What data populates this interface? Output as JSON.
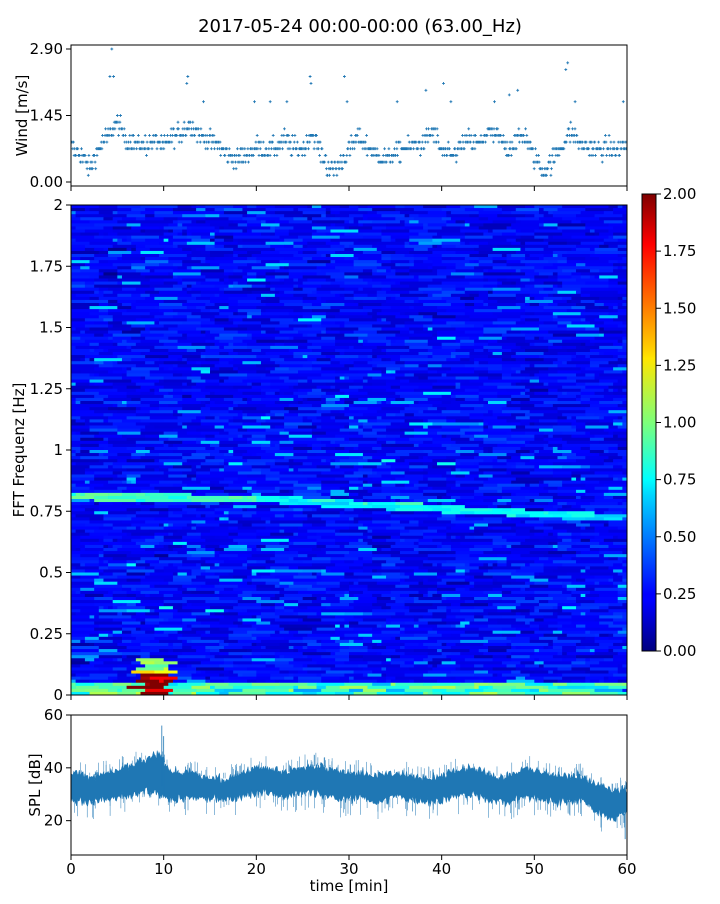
{
  "figure": {
    "title": "2017-05-24 00:00-00:00 (63.00_Hz)"
  },
  "chart_data": [
    {
      "type": "scatter",
      "panel": "wind",
      "ylabel": "Wind [m/s]",
      "xlim": [
        0,
        60
      ],
      "ylim": [
        0,
        2.9
      ],
      "yticks": [
        0.0,
        1.45,
        2.9
      ],
      "ytick_labels": [
        "0.00",
        "1.45",
        "2.90"
      ],
      "color": "#1f77b4",
      "marker": "+",
      "x_unit": "min",
      "trend": [
        [
          0,
          0.75
        ],
        [
          1,
          0.6
        ],
        [
          2,
          0.3
        ],
        [
          3,
          0.7
        ],
        [
          4,
          1.0
        ],
        [
          5,
          1.3
        ],
        [
          6,
          0.9
        ],
        [
          7,
          0.85
        ],
        [
          8,
          0.8
        ],
        [
          9,
          0.9
        ],
        [
          10,
          0.75
        ],
        [
          11,
          1.0
        ],
        [
          12,
          1.1
        ],
        [
          13,
          1.25
        ],
        [
          14,
          1.0
        ],
        [
          15,
          0.9
        ],
        [
          16,
          0.8
        ],
        [
          17,
          0.55
        ],
        [
          18,
          0.5
        ],
        [
          19,
          0.6
        ],
        [
          20,
          0.8
        ],
        [
          21,
          0.7
        ],
        [
          22,
          0.75
        ],
        [
          23,
          0.9
        ],
        [
          24,
          0.75
        ],
        [
          25,
          0.7
        ],
        [
          26,
          1.05
        ],
        [
          27,
          0.6
        ],
        [
          28,
          0.25
        ],
        [
          29,
          0.35
        ],
        [
          30,
          0.7
        ],
        [
          31,
          1.0
        ],
        [
          32,
          0.75
        ],
        [
          33,
          0.6
        ],
        [
          34,
          0.5
        ],
        [
          35,
          0.65
        ],
        [
          36,
          0.75
        ],
        [
          37,
          0.8
        ],
        [
          38,
          0.85
        ],
        [
          39,
          1.1
        ],
        [
          40,
          0.7
        ],
        [
          41,
          0.55
        ],
        [
          42,
          0.75
        ],
        [
          43,
          0.9
        ],
        [
          44,
          0.8
        ],
        [
          45,
          1.1
        ],
        [
          46,
          1.0
        ],
        [
          47,
          0.75
        ],
        [
          48,
          0.9
        ],
        [
          49,
          1.0
        ],
        [
          50,
          0.55
        ],
        [
          51,
          0.2
        ],
        [
          52,
          0.5
        ],
        [
          53,
          0.8
        ],
        [
          54,
          1.1
        ],
        [
          55,
          0.8
        ],
        [
          56,
          0.75
        ],
        [
          57,
          0.7
        ],
        [
          58,
          0.75
        ],
        [
          59,
          0.7
        ],
        [
          60,
          0.8
        ]
      ],
      "peaks": [
        [
          4.4,
          2.9
        ],
        [
          4.2,
          2.3
        ],
        [
          4.6,
          2.3
        ],
        [
          12.5,
          2.15
        ],
        [
          12.6,
          2.3
        ],
        [
          14.3,
          1.75
        ],
        [
          19.8,
          1.75
        ],
        [
          21.5,
          1.75
        ],
        [
          23.3,
          1.75
        ],
        [
          25.8,
          2.3
        ],
        [
          25.9,
          2.15
        ],
        [
          29.5,
          2.3
        ],
        [
          29.8,
          1.75
        ],
        [
          35.2,
          1.75
        ],
        [
          38.3,
          2.0
        ],
        [
          40.2,
          2.15
        ],
        [
          41.0,
          1.75
        ],
        [
          45.7,
          1.75
        ],
        [
          47.3,
          1.9
        ],
        [
          48.2,
          2.0
        ],
        [
          53.4,
          2.45
        ],
        [
          53.6,
          2.6
        ],
        [
          54.4,
          1.75
        ],
        [
          59.6,
          1.75
        ]
      ]
    },
    {
      "type": "heatmap",
      "panel": "spectrogram",
      "ylabel": "FFT Frequenz [Hz]",
      "xlim": [
        0,
        60
      ],
      "ylim": [
        0,
        2
      ],
      "yticks": [
        0,
        0.25,
        0.5,
        0.75,
        1,
        1.25,
        1.5,
        1.75,
        2
      ],
      "ytick_labels": [
        "0",
        "0.25",
        "0.5",
        "0.75",
        "1",
        "1.25",
        "1.5",
        "1.75",
        "2"
      ],
      "colormap": "jet",
      "clim": [
        0,
        2
      ],
      "colorbar_ticks": [
        0.0,
        0.25,
        0.5,
        0.75,
        1.0,
        1.25,
        1.5,
        1.75,
        2.0
      ],
      "colorbar_tick_labels": [
        "0.00",
        "0.25",
        "0.50",
        "0.75",
        "1.00",
        "1.25",
        "1.50",
        "1.75",
        "2.00"
      ],
      "background_level": 0.25,
      "features": [
        {
          "kind": "tonal_line",
          "x_range": [
            0,
            20
          ],
          "freq_range": [
            0.81,
            0.8
          ],
          "level": 0.9
        },
        {
          "kind": "tonal_line",
          "x_range": [
            20,
            60
          ],
          "freq_range": [
            0.8,
            0.72
          ],
          "level": 0.75
        },
        {
          "kind": "low_freq_burst",
          "x_range": [
            7.5,
            10.5
          ],
          "freq_range": [
            0,
            0.09
          ],
          "level": 2.0
        },
        {
          "kind": "low_freq_burst",
          "x_range": [
            7.5,
            10.5
          ],
          "freq_range": [
            0.09,
            0.15
          ],
          "level": 1.1
        },
        {
          "kind": "low_freq_band",
          "x_range": [
            0,
            60
          ],
          "freq_range": [
            0,
            0.05
          ],
          "level": 0.9
        }
      ]
    },
    {
      "type": "area",
      "panel": "spl",
      "ylabel": "SPL [dB]",
      "xlabel": "time [min]",
      "xlim": [
        0,
        60
      ],
      "ylim": [
        7,
        60
      ],
      "yticks": [
        20,
        40,
        60
      ],
      "ytick_labels": [
        "20",
        "40",
        "60"
      ],
      "xticks": [
        0,
        10,
        20,
        30,
        40,
        50,
        60
      ],
      "xtick_labels": [
        "0",
        "10",
        "20",
        "30",
        "40",
        "50",
        "60"
      ],
      "color": "#1f77b4",
      "envelope": [
        {
          "x": 0,
          "low": 28,
          "high": 38
        },
        {
          "x": 2,
          "low": 27,
          "high": 37
        },
        {
          "x": 4,
          "low": 28,
          "high": 38
        },
        {
          "x": 6,
          "low": 29,
          "high": 40
        },
        {
          "x": 8,
          "low": 31,
          "high": 43
        },
        {
          "x": 9.5,
          "low": 30,
          "high": 45
        },
        {
          "x": 11,
          "low": 28,
          "high": 38
        },
        {
          "x": 13,
          "low": 29,
          "high": 38
        },
        {
          "x": 15,
          "low": 28,
          "high": 36
        },
        {
          "x": 17,
          "low": 28,
          "high": 36
        },
        {
          "x": 19,
          "low": 30,
          "high": 39
        },
        {
          "x": 21,
          "low": 31,
          "high": 40
        },
        {
          "x": 23,
          "low": 29,
          "high": 38
        },
        {
          "x": 25,
          "low": 31,
          "high": 40
        },
        {
          "x": 27,
          "low": 30,
          "high": 41
        },
        {
          "x": 29,
          "low": 28,
          "high": 38
        },
        {
          "x": 31,
          "low": 29,
          "high": 38
        },
        {
          "x": 33,
          "low": 27,
          "high": 37
        },
        {
          "x": 35,
          "low": 29,
          "high": 38
        },
        {
          "x": 37,
          "low": 28,
          "high": 37
        },
        {
          "x": 39,
          "low": 27,
          "high": 36
        },
        {
          "x": 41,
          "low": 29,
          "high": 38
        },
        {
          "x": 43,
          "low": 30,
          "high": 40
        },
        {
          "x": 45,
          "low": 28,
          "high": 38
        },
        {
          "x": 47,
          "low": 27,
          "high": 36
        },
        {
          "x": 49,
          "low": 29,
          "high": 40
        },
        {
          "x": 51,
          "low": 28,
          "high": 38
        },
        {
          "x": 53,
          "low": 27,
          "high": 37
        },
        {
          "x": 55,
          "low": 28,
          "high": 37
        },
        {
          "x": 57,
          "low": 23,
          "high": 33
        },
        {
          "x": 58.5,
          "low": 21,
          "high": 31
        },
        {
          "x": 60,
          "low": 23,
          "high": 32
        }
      ],
      "spikes": [
        {
          "x": 9.8,
          "low": 33,
          "high": 56
        },
        {
          "x": 10.0,
          "low": 30,
          "high": 52
        },
        {
          "x": 59.8,
          "low": 13,
          "high": 28
        }
      ]
    }
  ]
}
